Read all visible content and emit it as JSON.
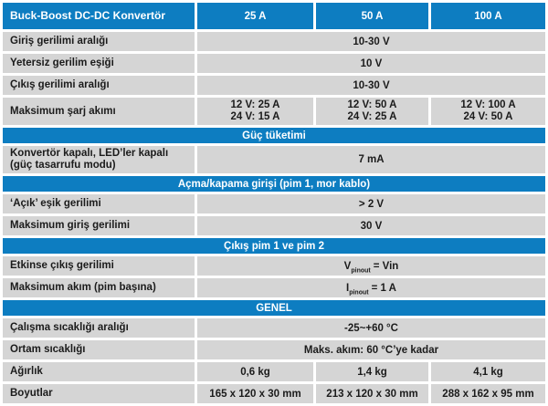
{
  "colors": {
    "header_blue": "#0d7dc1",
    "cell_gray": "#d5d5d5",
    "header_text": "#ffffff",
    "body_text": "#1b1b1b"
  },
  "table": {
    "title": "Buck-Boost DC-DC Konvertör",
    "model_columns": [
      "25 A",
      "50 A",
      "100 A"
    ],
    "sections": {
      "power_consumption": "Güç tüketimi",
      "remote_input": "Açma/kapama girişi (pim 1, mor kablo)",
      "output_pins": "Çıkış pim 1 ve pim 2",
      "general": "GENEL"
    },
    "rows": {
      "input_voltage_range": {
        "label": "Giriş gerilimi aralığı",
        "value": "10-30 V"
      },
      "undervoltage_threshold": {
        "label": "Yetersiz gerilim eşiği",
        "value": "10 V"
      },
      "output_voltage_range": {
        "label": "Çıkış gerilimi aralığı",
        "value": "10-30 V"
      },
      "max_charge_current": {
        "label": "Maksimum şarj akımı",
        "values": [
          {
            "line1": "12 V: 25 A",
            "line2": "24 V: 15 A"
          },
          {
            "line1": "12 V: 50 A",
            "line2": "24 V: 25 A"
          },
          {
            "line1": "12 V: 100 A",
            "line2": "24 V: 50 A"
          }
        ]
      },
      "converter_off": {
        "label": "Konvertör kapalı, LED’ler kapalı (güç tasarrufu modu)",
        "value": "7 mA"
      },
      "on_threshold": {
        "label": "‘Açık’ eşik gerilimi",
        "value": "> 2 V"
      },
      "max_input_voltage": {
        "label": "Maksimum giriş gerilimi",
        "value": "30 V"
      },
      "active_output_voltage": {
        "label": "Etkinse çıkış gerilimi",
        "value_var": "V",
        "value_sub": "pinout",
        "value_rest": "= Vin"
      },
      "max_current_per_pin": {
        "label": "Maksimum akım (pim başına)",
        "value_var": "I",
        "value_sub": "pinout",
        "value_rest": "= 1 A"
      },
      "operating_temp": {
        "label": "Çalışma sıcaklığı aralığı",
        "value": "-25~+60 °C"
      },
      "ambient_temp": {
        "label": "Ortam sıcaklığı",
        "value": "Maks. akım: 60 °C’ye kadar"
      },
      "weight": {
        "label": "Ağırlık",
        "values": [
          "0,6 kg",
          "1,4 kg",
          "4,1 kg"
        ]
      },
      "dimensions": {
        "label": "Boyutlar",
        "values": [
          "165 x 120 x 30 mm",
          "213 x 120 x 30 mm",
          "288 x 162 x 95 mm"
        ]
      }
    }
  }
}
